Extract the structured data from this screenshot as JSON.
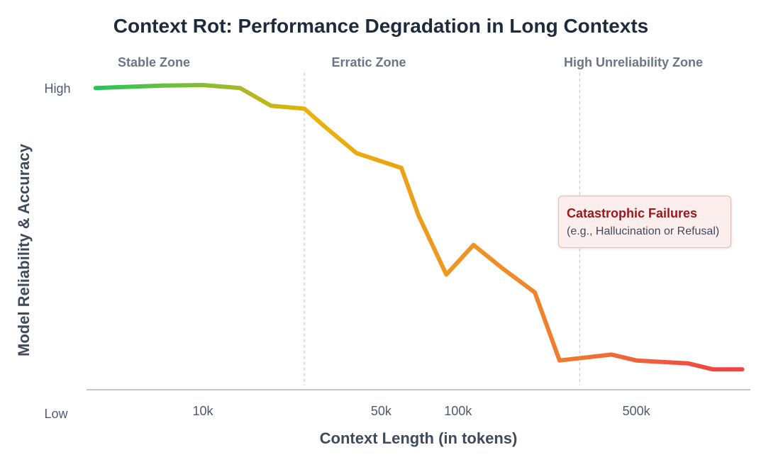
{
  "chart_data": {
    "type": "line",
    "title": "Context Rot: Performance Degradation in Long Contexts",
    "xlabel": "Context Length (in tokens)",
    "ylabel": "Model Reliability & Accuracy",
    "x_scale": "log",
    "x_ticks": [
      {
        "value": 10000,
        "label": "10k"
      },
      {
        "value": 50000,
        "label": "50k"
      },
      {
        "value": 100000,
        "label": "100k"
      },
      {
        "value": 500000,
        "label": "500k"
      }
    ],
    "y_ticks": [
      {
        "value": 1,
        "label": "High"
      },
      {
        "value": 0,
        "label": "Low"
      }
    ],
    "xlim": [
      3500,
      1400000
    ],
    "ylim": [
      0,
      1
    ],
    "series": [
      {
        "name": "Model Reliability & Accuracy",
        "x": [
          3800,
          7000,
          10000,
          14000,
          18500,
          25000,
          30000,
          40000,
          60000,
          70000,
          90000,
          115000,
          150000,
          200000,
          250000,
          400000,
          500000,
          800000,
          1000000,
          1300000
        ],
        "y": [
          0.99,
          0.998,
          1.0,
          0.99,
          0.93,
          0.92,
          0.86,
          0.77,
          0.72,
          0.56,
          0.36,
          0.46,
          0.38,
          0.3,
          0.07,
          0.09,
          0.07,
          0.06,
          0.04,
          0.04
        ]
      }
    ],
    "zones": [
      {
        "label": "Stable Zone",
        "x_start": 3500,
        "x_end": 25000
      },
      {
        "label": "Erratic Zone",
        "x_start": 25000,
        "x_end": 300000
      },
      {
        "label": "High Unreliability Zone",
        "x_start": 300000,
        "x_end": 1400000
      }
    ],
    "zone_boundaries": [
      25000,
      300000
    ],
    "annotation": {
      "title": "Catastrophic Failures",
      "text": "(e.g., Hallucination or Refusal)"
    },
    "colors": {
      "start": "#22c55e",
      "mid": "#eab308",
      "end": "#ef4444"
    }
  }
}
